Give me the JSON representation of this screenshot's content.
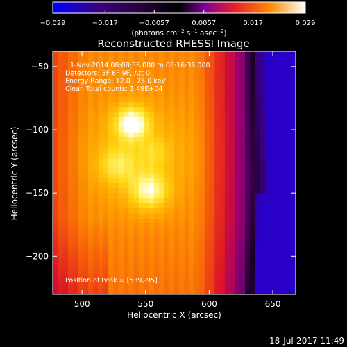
{
  "chart_data": {
    "type": "heatmap",
    "title": "Reconstructed RHESSI Image",
    "xlabel": "Heliocentric X (arcsec)",
    "ylabel": "Heliocentric Y (arcsec)",
    "xlim": [
      477,
      668
    ],
    "ylim": [
      -230,
      -38
    ],
    "xticks": [
      500,
      550,
      600,
      650
    ],
    "yticks": [
      -50,
      -100,
      -150,
      -200
    ],
    "xticklabels": [
      "500",
      "550",
      "600",
      "650"
    ],
    "yticklabels": [
      "−50",
      "−100",
      "−150",
      "−200"
    ],
    "colorbar": {
      "min": -0.029,
      "max": 0.029,
      "ticks": [
        -0.029,
        -0.017,
        -0.0057,
        0.0057,
        0.017,
        0.029
      ],
      "ticklabels": [
        "−0.029",
        "−0.017",
        "−0.0057",
        "0.0057",
        "0.017",
        "0.029"
      ],
      "unit_html": "(photons cm<tspan dy='-4' font-size='7'>−2</tspan><tspan dy='4'> s</tspan><tspan dy='-4' font-size='7'>−1</tspan><tspan dy='4'> asec</tspan><tspan dy='-4' font-size='7'>−2</tspan><tspan dy='4'>)</tspan>"
    },
    "annotations": [
      "1-Nov-2014 08:08:36.000 to 08:16:36.000",
      "Detectors: 3F 6F 9F, Att 0",
      "Energy Range: 12.0 - 25.0 keV",
      "Clean    Total counts: 3.49E+04"
    ],
    "peak_label": "Position of Peak = [539,-95]",
    "peak": [
      539,
      -95
    ],
    "footer": "18-Jul-2017 11:49"
  }
}
